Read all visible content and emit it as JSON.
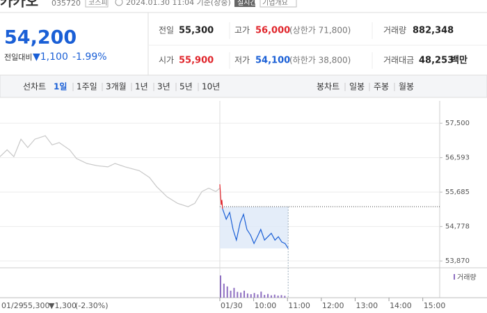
{
  "header": {
    "name": "카카오",
    "code": "035720",
    "market": "코스피",
    "timestamp": "2024.01.30 11:04 기준(장중)",
    "realtime": "실시간",
    "company_info": "기업개요"
  },
  "price": {
    "current": "54,200",
    "change_label": "전일대비",
    "change": "▼1,100",
    "change_pct": "-1.99%"
  },
  "summary": [
    [
      {
        "label": "전일",
        "value": "55,300"
      },
      {
        "label": "고가",
        "value": "56,000",
        "note": "(상한가 71,800)"
      },
      {
        "label": "거래량",
        "value": "882,348"
      }
    ],
    [
      {
        "label": "시가",
        "value": "55,900"
      },
      {
        "label": "저가",
        "value": "54,100",
        "note": "(하한가 38,800)"
      },
      {
        "label": "거래대금",
        "value": "48,253",
        "unit": "백만"
      }
    ]
  ],
  "tabs": {
    "line_label": "선차트",
    "line_periods": [
      "1일",
      "1주일",
      "3개월",
      "1년",
      "3년",
      "5년",
      "10년"
    ],
    "candle_label": "봉차트",
    "candle_periods": [
      "일봉",
      "주봉",
      "월봉"
    ]
  },
  "chart_data": {
    "type": "line",
    "xlim": [
      -6.5,
      6.5
    ],
    "ylim": [
      53690,
      58090
    ],
    "yticks": [
      {
        "value": 57500,
        "label": "57,500"
      },
      {
        "value": 56593,
        "label": "56,593"
      },
      {
        "value": 55685,
        "label": "55,685"
      },
      {
        "value": 54778,
        "label": "54,778"
      },
      {
        "value": 53870,
        "label": "53,870"
      }
    ],
    "xticks": [
      {
        "value": 0,
        "label": "01/30"
      },
      {
        "value": 1,
        "label": "10:00"
      },
      {
        "value": 2,
        "label": "11:00"
      },
      {
        "value": 3,
        "label": "12:00"
      },
      {
        "value": 4,
        "label": "13:00"
      },
      {
        "value": 5,
        "label": "14:00"
      },
      {
        "value": 6,
        "label": "15:00"
      }
    ],
    "grid": true,
    "prev_close": 55300,
    "series": [
      {
        "color": "#c8c8c8",
        "x": [
          -6.5,
          -6.29,
          -6.09,
          -5.88,
          -5.68,
          -5.47,
          -5.16,
          -4.96,
          -4.75,
          -4.44,
          -4.24,
          -3.93,
          -3.62,
          -3.31,
          -3.1,
          -2.8,
          -2.38,
          -2.08,
          -1.87,
          -1.56,
          -1.25,
          -0.94,
          -0.74,
          -0.53,
          -0.33,
          -0.12,
          0
        ],
        "values": [
          56620,
          56800,
          56620,
          57080,
          56860,
          57080,
          57170,
          56930,
          56990,
          56800,
          56570,
          56440,
          56380,
          56350,
          56440,
          56350,
          56250,
          56070,
          55830,
          55560,
          55390,
          55300,
          55390,
          55700,
          55790,
          55700,
          55790
        ]
      },
      {
        "color": "#e0252b",
        "x": [
          0,
          0.04,
          0.06,
          0.08
        ],
        "values": [
          55890,
          55350,
          55480,
          55245
        ]
      },
      {
        "color": "#1a5fd6",
        "x": [
          0.08,
          0.19,
          0.29,
          0.39,
          0.49,
          0.6,
          0.7,
          0.8,
          0.91,
          1.01,
          1.11,
          1.21,
          1.32,
          1.52,
          1.63,
          1.73,
          1.83,
          1.93,
          2.02
        ],
        "values": [
          55245,
          54970,
          55150,
          54700,
          54420,
          54880,
          55100,
          54700,
          54550,
          54330,
          54510,
          54700,
          54420,
          54600,
          54420,
          54510,
          54370,
          54330,
          54200
        ]
      }
    ],
    "volume_label": "거래량",
    "volume_color": "#8e6fc1",
    "volume": {
      "x": [
        0,
        0.1,
        0.2,
        0.3,
        0.4,
        0.5,
        0.6,
        0.7,
        0.8,
        0.9,
        1,
        1.1,
        1.2,
        1.3,
        1.4,
        1.5,
        1.6,
        1.7,
        1.8,
        1.9
      ],
      "values": [
        95000,
        60000,
        48000,
        30000,
        42000,
        25000,
        22000,
        30000,
        18000,
        15000,
        20000,
        14000,
        26000,
        12000,
        16000,
        10000,
        13000,
        9000,
        11000,
        8000
      ]
    },
    "prev_day": {
      "date": "01/29",
      "close": "55,300",
      "change": "▼1,300",
      "change_pct": "(-2.30%)"
    }
  }
}
